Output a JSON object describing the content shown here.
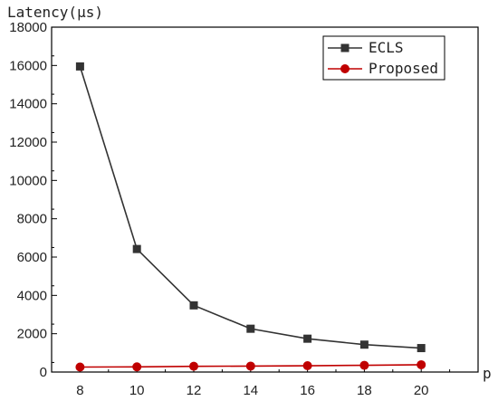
{
  "chart_data": {
    "type": "line",
    "title": "",
    "ylabel": "Latency(μs)",
    "xlabel": "p",
    "x": [
      8,
      10,
      12,
      14,
      16,
      18,
      20
    ],
    "xlim": [
      7,
      22
    ],
    "xticks": [
      8,
      10,
      12,
      14,
      16,
      18,
      20
    ],
    "ylim": [
      0,
      18000
    ],
    "yticks": [
      0,
      2000,
      4000,
      6000,
      8000,
      10000,
      12000,
      14000,
      16000,
      18000
    ],
    "grid": false,
    "legend_position": "top-right",
    "series": [
      {
        "name": "ECLS",
        "color": "#333333",
        "marker": "square",
        "values": [
          15950,
          6420,
          3480,
          2260,
          1740,
          1430,
          1250
        ]
      },
      {
        "name": "Proposed",
        "color": "#c00000",
        "marker": "circle",
        "values": [
          260,
          270,
          300,
          310,
          330,
          350,
          380
        ]
      }
    ]
  }
}
